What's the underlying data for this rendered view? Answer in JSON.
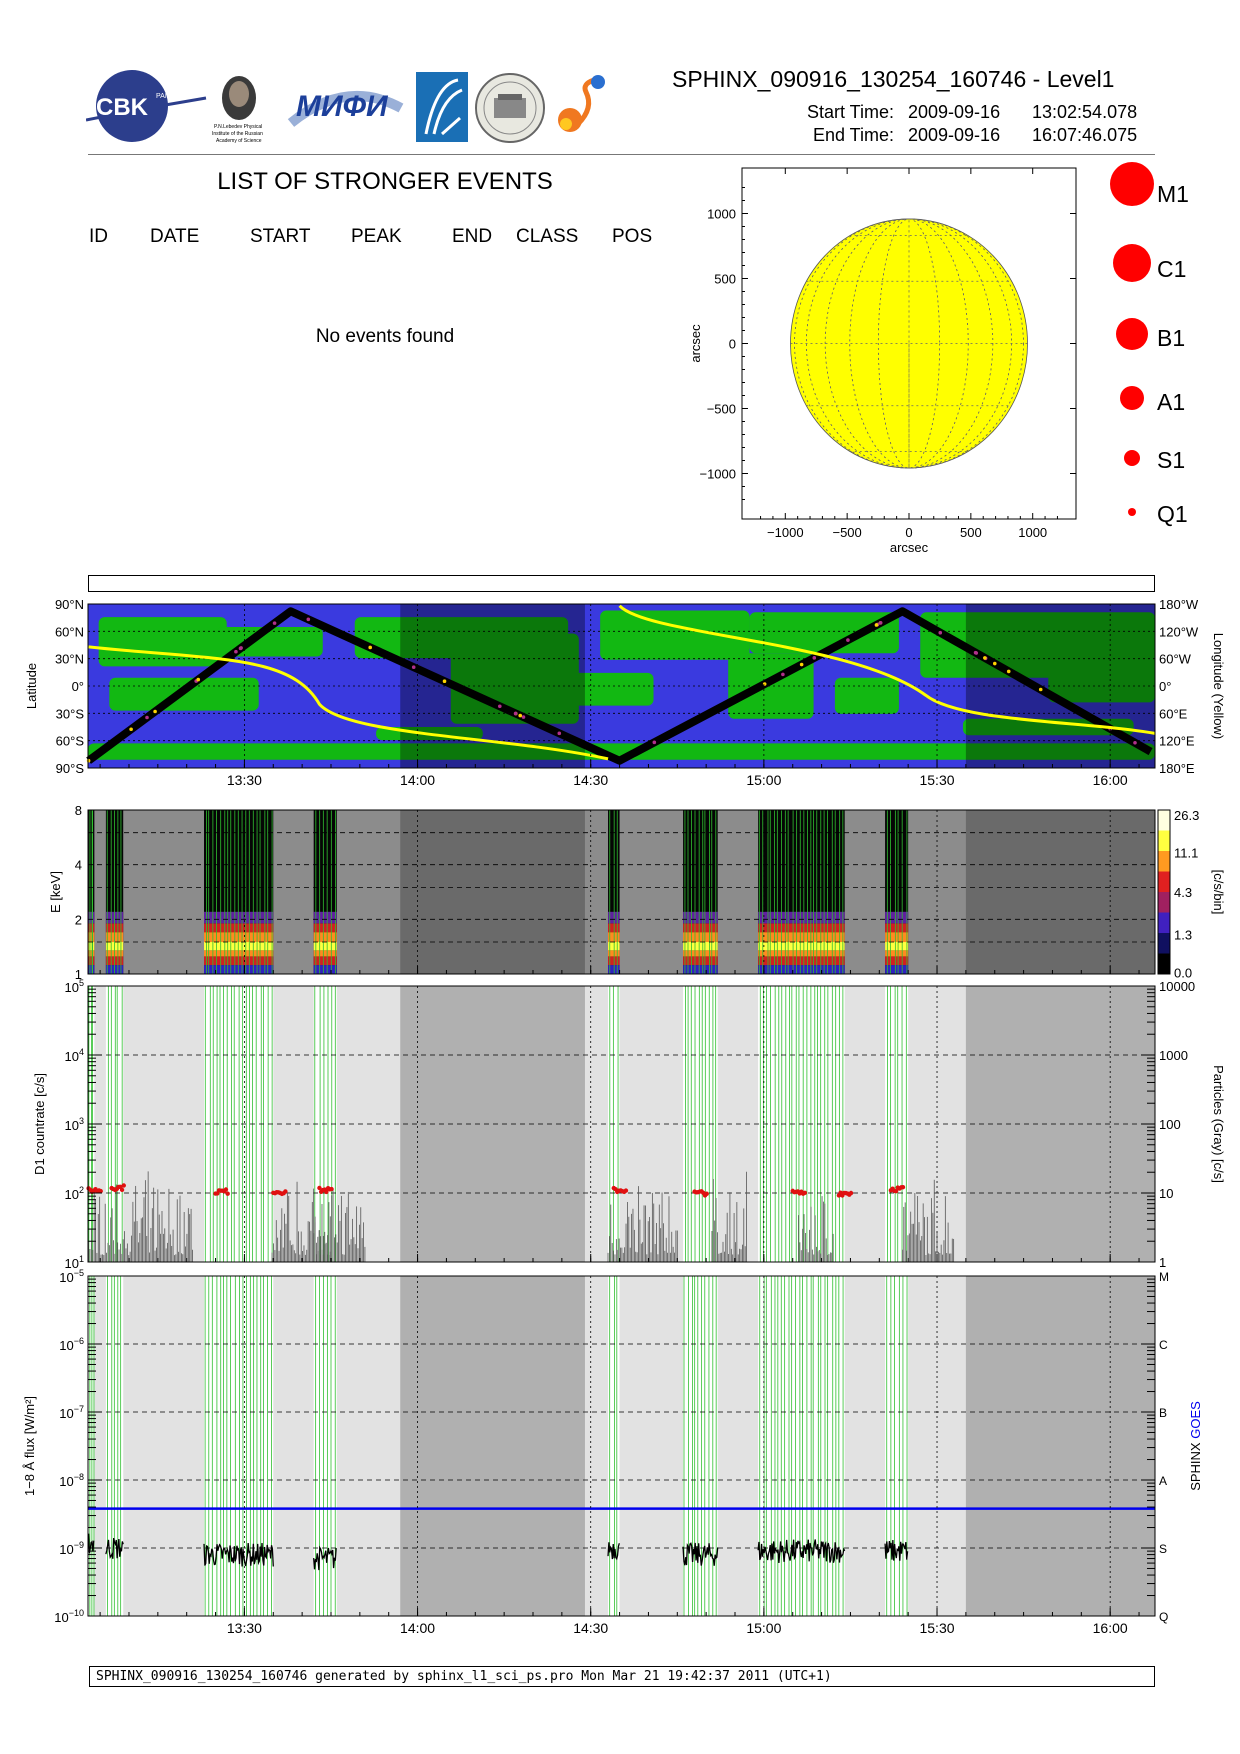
{
  "header": {
    "logos": [
      "cbk-logo",
      "lebedev-portrait-logo",
      "mifi-logo",
      "arc-logo",
      "seal-logo",
      "sun-logo"
    ],
    "logo_texts": [
      "CBK",
      "PAN",
      "P.N.Lebedev Physical",
      "Institute of the Russian",
      "Academy of Science",
      "МИФИ"
    ],
    "title": "SPHINX_090916_130254_160746 - Level1",
    "start_label": "Start Time:",
    "start_date": "2009-09-16",
    "start_time": "13:02:54.078",
    "end_label": "End Time:",
    "end_date": "2009-09-16",
    "end_time": "16:07:46.075"
  },
  "events": {
    "title": "LIST OF STRONGER EVENTS",
    "columns": [
      "ID",
      "DATE",
      "START",
      "PEAK",
      "END",
      "CLASS",
      "POS"
    ],
    "empty_text": "No events found"
  },
  "sun_map": {
    "xlabel": "arcsec",
    "ylabel": "arcsec",
    "x_ticks": [
      "−1000",
      "−500",
      "0",
      "500",
      "1000"
    ],
    "y_ticks": [
      "1000",
      "500",
      "0",
      "−500",
      "−1000"
    ],
    "xlim": [
      -1350,
      1350
    ],
    "ylim": [
      -1350,
      1350
    ],
    "disk_radius_arcsec": 958,
    "disk_color": "#ffff00",
    "grid": true
  },
  "class_legend": {
    "labels": [
      "M1",
      "C1",
      "B1",
      "A1",
      "S1",
      "Q1"
    ],
    "color": "#ff0000"
  },
  "orbit_panel": {
    "ylabel_left": "Latitude",
    "ylabel_right": "Longitude (Yellow)",
    "left_ticks": [
      "90°N",
      "60°N",
      "30°N",
      "0°",
      "30°S",
      "60°S",
      "90°S"
    ],
    "right_ticks": [
      "180°W",
      "120°W",
      "60°W",
      "0°",
      "60°E",
      "120°E",
      "180°E"
    ],
    "x_ticks": [
      "13:30",
      "14:00",
      "14:30",
      "15:00",
      "15:30",
      "16:00"
    ],
    "colors": {
      "ocean": "#3a3adf",
      "land": "#12b812",
      "track": "#000000",
      "longitude": "#ffff00"
    }
  },
  "spectrum_panel": {
    "ylabel": "E [keV]",
    "y_ticks": [
      "8",
      "4",
      "2",
      "1"
    ],
    "colorbar_ticks": [
      "26.3",
      "11.1",
      "4.3",
      "1.3",
      "0.0"
    ],
    "colorbar_label": "[c/s/bin]"
  },
  "count_panel": {
    "ylabel_left": "D1 countrate [c/s]",
    "ylabel_right": "Particles (Gray) [c/s]",
    "left_ticks": [
      {
        "base": "10",
        "exp": "5"
      },
      {
        "base": "10",
        "exp": "4"
      },
      {
        "base": "10",
        "exp": "3"
      },
      {
        "base": "10",
        "exp": "2"
      },
      {
        "base": "10",
        "exp": "1"
      }
    ],
    "right_ticks": [
      "10000",
      "1000",
      "100",
      "10",
      "1"
    ]
  },
  "flux_panel": {
    "ylabel_left": "1−8 Å flux [W/m²]",
    "ylabel_right_a": "SPHINX",
    "ylabel_right_b": "GOES",
    "left_ticks": [
      {
        "base": "10",
        "exp": "−5"
      },
      {
        "base": "10",
        "exp": "−6"
      },
      {
        "base": "10",
        "exp": "−7"
      },
      {
        "base": "10",
        "exp": "−8"
      },
      {
        "base": "10",
        "exp": "−9"
      },
      {
        "base": "10",
        "exp": "−10"
      }
    ],
    "right_ticks": [
      "M",
      "C",
      "B",
      "A",
      "S",
      "Q"
    ],
    "x_ticks": [
      "13:30",
      "14:00",
      "14:30",
      "15:00",
      "15:30",
      "16:00"
    ],
    "goes_color": "#0000ee",
    "sphinx_color": "#000000"
  },
  "chart_data": {
    "type": "line",
    "x_unit": "UT time, 2009-09-16",
    "x_range": [
      "13:02:54",
      "16:07:46"
    ],
    "sphinx_observation_intervals": [
      [
        "13:03",
        "13:04"
      ],
      [
        "13:06",
        "13:09"
      ],
      [
        "13:23",
        "13:35"
      ],
      [
        "13:42",
        "13:46"
      ],
      [
        "14:33",
        "14:35"
      ],
      [
        "14:46",
        "14:52"
      ],
      [
        "14:59",
        "15:14"
      ],
      [
        "15:21",
        "15:25"
      ]
    ],
    "d1_countrate_c_s": [
      {
        "t": "13:03",
        "v": 110
      },
      {
        "t": "13:07",
        "v": 120
      },
      {
        "t": "13:25",
        "v": 105
      },
      {
        "t": "13:35",
        "v": 105
      },
      {
        "t": "13:43",
        "v": 110
      },
      {
        "t": "14:34",
        "v": 110
      },
      {
        "t": "14:48",
        "v": 100
      },
      {
        "t": "15:05",
        "v": 100
      },
      {
        "t": "15:13",
        "v": 100
      },
      {
        "t": "15:22",
        "v": 115
      }
    ],
    "sphinx_flux_W_m2": [
      {
        "t": "13:03",
        "v": 1.2e-09
      },
      {
        "t": "13:08",
        "v": 1e-09
      },
      {
        "t": "13:25",
        "v": 8e-10
      },
      {
        "t": "13:35",
        "v": 9e-10
      },
      {
        "t": "13:44",
        "v": 7e-10
      },
      {
        "t": "14:34",
        "v": 1e-09
      },
      {
        "t": "14:50",
        "v": 8e-10
      },
      {
        "t": "15:05",
        "v": 9e-10
      },
      {
        "t": "15:13",
        "v": 1.1e-09
      },
      {
        "t": "15:23",
        "v": 9e-10
      }
    ],
    "goes_flux_W_m2": 3.8e-09,
    "satellite_latitude_deg": [
      {
        "t": "13:03",
        "v": -82
      },
      {
        "t": "13:38",
        "v": 82
      },
      {
        "t": "14:35",
        "v": -82
      },
      {
        "t": "15:24",
        "v": 82
      },
      {
        "t": "16:07",
        "v": -72
      }
    ]
  },
  "footer": {
    "text": "SPHINX_090916_130254_160746 generated by sphinx_l1_sci_ps.pro Mon Mar 21 19:42:37 2011 (UTC+1)"
  }
}
